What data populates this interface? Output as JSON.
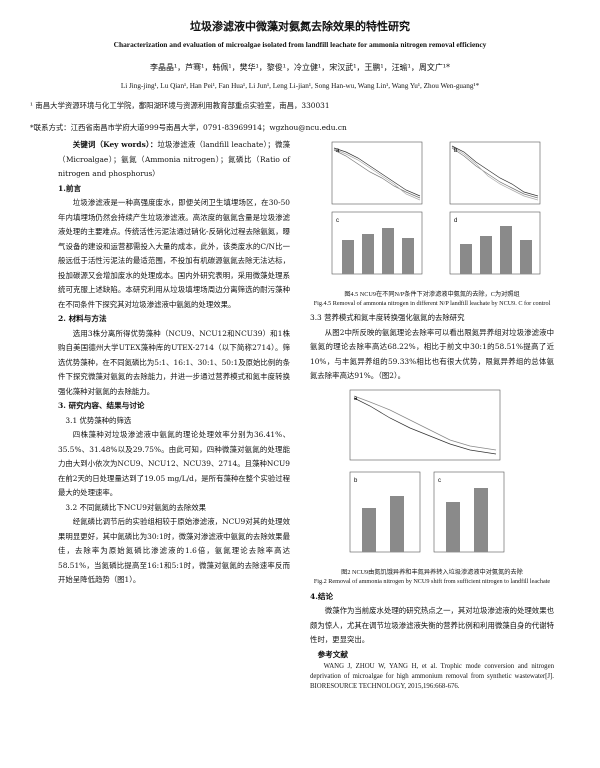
{
  "title_cn": "垃圾渗滤液中微藻对氨氮去除效果的特性研究",
  "title_en": "Characterization and evaluation of microalgae isolated from landfill leachate for ammonia nitrogen removal efficiency",
  "authors_cn": "李晶晶¹，芦骞¹，韩佩¹，樊华¹，黎俊¹，冷立健¹，宋汉武¹，王鹏¹，汪瑜¹，周文广¹*",
  "authors_en": "Li Jing-jing¹, Lu Qian¹, Han Pei¹, Fan Hua¹, Li Jun¹, Leng Li-jian¹, Song Han-wu, Wang Lin¹, Wang Yu¹, Zhou Wen-guang¹*",
  "affiliation": "¹ 南昌大学资源环境与化工学院，鄱阳湖环境与资源利用教育部重点实验室，南昌，330031",
  "contact": "*联系方式：江西省南昌市学府大道999号南昌大学，0791-83969914；wgzhou@ncu.edu.cn",
  "keywords": {
    "label": "关键词（Key words）：",
    "text": "垃圾渗滤液（landfill leachate）；微藻（Microalgae）；氨氮（Ammonia nitrogen）；氮磷比（Ratio of nitrogen and phosphorus）"
  },
  "sections": {
    "s1_title": "1.前言",
    "s1_p1": "垃圾渗滤液是一种高强度废水，即便关闭卫生填埋场区，在30-50年内填埋场仍然会持续产生垃圾渗滤液。高浓度的氨氮含量是垃圾渗滤液处理的主要难点。传统活性污泥法通过硝化-反硝化过程去除氨氮，曝气设备的建设和运营都需投入大量的成本，此外，该类废水的C/N比一般远低于活性污泥法的最适范围，不投加有机碳源氨氮去除无法达标，投加碳源又会增加废水的处理成本。国内外研究表明，采用微藻处理系统可克服上述缺陷。本研究利用从垃圾填埋场周边分离筛选的耐污藻种在不同条件下探究其对垃圾渗滤液中氨氮的处理效果。",
    "s2_title": "2. 材料与方法",
    "s2_p1": "选用3株分离所得优势藻种（NCU9、NCU12和NCU39）和1株购自美国德州大学UTEX藻种库的UTEX-2714（以下简称2714）。筛选优势藻种，在不同氮磷比为5:1、16:1、30:1、50:1及原始比例的条件下探究微藻对氨氮的去除能力，并进一步通过营养模式和氮丰度转换强化藻种对氨氮的去除能力。",
    "s3_title": "3. 研究内容、结果与讨论",
    "s31_title": "3.1 优势藻种的筛选",
    "s31_p1": "四株藻种对垃圾渗滤液中氨氮的理论处理效率分别为36.41%、35.5%、31.48%以及29.75%。由此可知，四种微藻对氨氮的处理能力由大到小依次为NCU9、NCU12、NCU39、2714。且藻种NCU9在前2天的日处理量达到了19.05 mg/L/d，是所有藻种在整个实验过程最大的处理速率。",
    "s32_title": "3.2 不同氮磷比下NCU9对氨氮的去除效果",
    "s32_p1": "经氮磷比调节后的实验组相较于原始渗滤液，NCU9对其的处理效果明显更好，其中氮磷比为30:1时，微藻对渗滤液中氨氮的去除效果最佳，去除率为原始氮磷比渗滤液的1.6倍，氨氮理论去除率高达58.51%，当氮磷比提高至16:1和5:1时，微藻对氨氮的去除速率反而开始呈降低趋势（图1）。",
    "s33_title": "3.3 营养模式和氮丰度转换强化氨氮的去除研究",
    "s33_p1": "从图2中所反映的氨氮理论去除率可以看出限氮异养组对垃圾渗滤液中氨氮的理论去除率高达68.22%，相比于前文中30:1的58.51%提高了近10%，与丰氮异养组的59.33%相比也有很大优势，限氮异养组的总体氨氮去除率高达91%。（图2）。",
    "s4_title": "4.结论",
    "s4_p1": "微藻作为当前废水处理的研究热点之一，其对垃圾渗滤液的处理效果也颇为惊人，尤其在调节垃圾渗滤液失衡的营养比例和利用微藻自身的代谢特性时，更显突出。",
    "ref_title": "参考文献",
    "ref_1": "WANG J, ZHOU W, YANG H, et al. Trophic mode conversion and nitrogen deprivation of microalgae for high ammonium removal from synthetic wastewater[J]. BIORESOURCE TECHNOLOGY, 2015,196:668-676."
  },
  "figure1": {
    "caption_cn": "图4.5 NCU9在不同N/P条件下对渗滤液中氨氮的去除，C为对照组",
    "caption_en": "Fig.4.5 Removal of ammonia nitrogen in different N/P landfill leachate by NCU9. C for control",
    "panel_a_label": "a",
    "panel_b_label": "b",
    "panel_c_label": "c",
    "panel_d_label": "d"
  },
  "figure2": {
    "caption_cn": "图2 NCU9由氮饥饿异养和丰氮异养转入垃圾渗滤液中对氨氮的去除",
    "caption_en": "Fig.2 Removal of ammonia nitrogen by NCU9 shift from sufficient nitrogen to landfill leachate",
    "panel_a_label": "a",
    "panel_b_label": "b",
    "panel_c_label": "c"
  },
  "colors": {
    "line_dark": "#333333",
    "line_mid": "#777777",
    "line_light": "#aaaaaa",
    "bar": "#8a8a8a"
  }
}
